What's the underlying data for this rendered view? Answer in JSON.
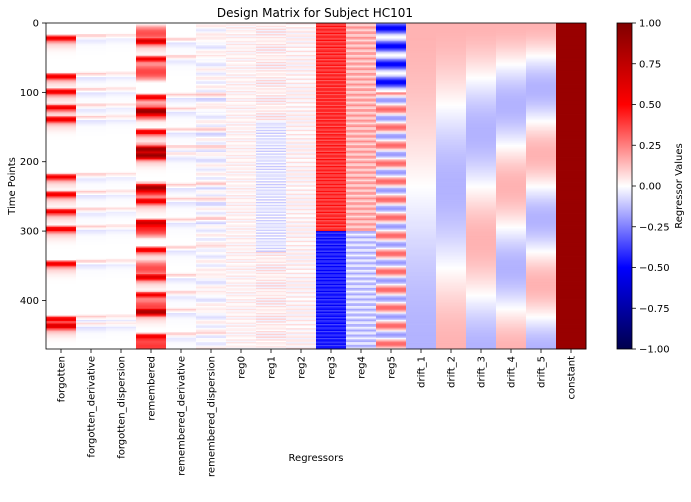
{
  "chart_data": {
    "type": "heatmap",
    "title": "Design Matrix for Subject HC101",
    "xlabel": "Regressors",
    "ylabel": "Time Points",
    "n_timepoints": 470,
    "yticks": [
      0,
      100,
      200,
      300,
      400
    ],
    "categories": [
      "forgotten",
      "forgotten_derivative",
      "forgotten_dispersion",
      "remembered",
      "remembered_derivative",
      "remembered_dispersion",
      "reg0",
      "reg1",
      "reg2",
      "reg3",
      "reg4",
      "reg5",
      "drift_1",
      "drift_2",
      "drift_3",
      "drift_4",
      "drift_5",
      "constant"
    ],
    "colormap": "seismic",
    "colors": {
      "low": "#00004c",
      "mid_low": "#0000ff",
      "center": "#ffffff",
      "mid_high": "#ff0000",
      "high": "#800000"
    },
    "vmin": -1.0,
    "vmax": 1.0,
    "colorbar": {
      "label": "Regressor Values",
      "ticks": [
        -1.0,
        -0.75,
        -0.5,
        -0.25,
        0.0,
        0.25,
        0.5,
        0.75,
        1.0
      ],
      "tick_labels": [
        "−1.00",
        "−0.75",
        "−0.50",
        "−0.25",
        "0.00",
        "0.25",
        "0.50",
        "0.75",
        "1.00"
      ]
    },
    "forgotten_events": [
      15,
      70,
      92,
      115,
      132,
      215,
      240,
      265,
      290,
      340,
      420,
      430
    ],
    "remembered_events": [
      20,
      45,
      100,
      120,
      150,
      175,
      185,
      230,
      250,
      280,
      320,
      360,
      385,
      410,
      445
    ],
    "column_levels": {
      "forgotten": 0.8,
      "forgotten_derivative": 0.12,
      "forgotten_dispersion": 0.08,
      "remembered": 0.8,
      "remembered_derivative": 0.12,
      "remembered_dispersion": 0.12,
      "reg0": 0.04,
      "reg1": 0.06,
      "reg2": 0.05,
      "reg3": 0.4,
      "reg4": 0.08,
      "reg5": 0.25,
      "constant": 0.9
    }
  }
}
